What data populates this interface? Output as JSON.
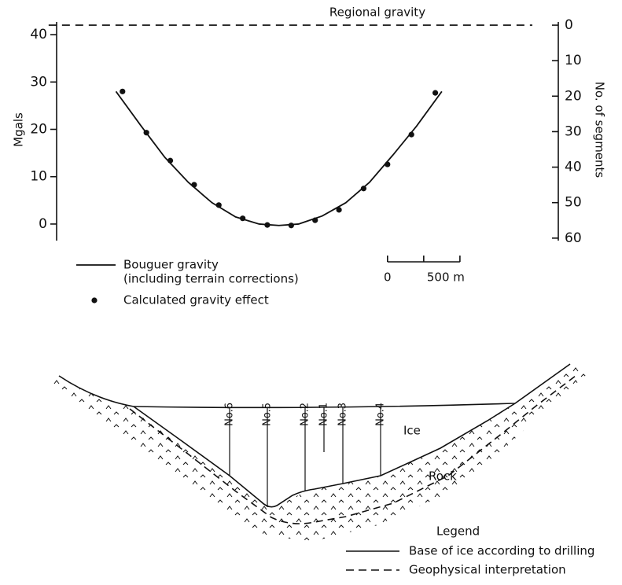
{
  "chart_data": {
    "type": "line",
    "y_label": "Mgals",
    "y2_label": "No. of segments",
    "xlim": [
      -2350,
      1125
    ],
    "ylim": [
      -3.5,
      43.5
    ],
    "yticks": [
      0,
      10,
      20,
      30,
      40
    ],
    "y2lim": [
      60.7,
      -2
    ],
    "y2ticks": [
      0,
      10,
      20,
      30,
      40,
      50,
      60
    ],
    "series": [
      {
        "name": "Regional gravity",
        "type": "line",
        "dash": true,
        "color": "#111",
        "x": [
          -2340,
          1000
        ],
        "values": [
          42,
          42
        ]
      },
      {
        "name": "Bouguer gravity",
        "note": "(including terrain corrections)",
        "type": "line",
        "color": "#111",
        "x": [
          -1875,
          -1701,
          -1538,
          -1375,
          -1212,
          -1049,
          -886,
          -750,
          -614,
          -451,
          -288,
          -125,
          38,
          201,
          375
        ],
        "values": [
          28,
          20.7,
          14.1,
          8.8,
          4.5,
          1.5,
          0,
          -0.3,
          0,
          1.7,
          4.5,
          8.8,
          14.6,
          20.7,
          28
        ]
      },
      {
        "name": "Calculated gravity effect",
        "type": "scatter",
        "color": "#111",
        "x": [
          -1830,
          -1665,
          -1500,
          -1335,
          -1165,
          -1000,
          -830,
          -665,
          -500,
          -335,
          -165,
          0,
          165,
          330
        ],
        "values": [
          28,
          19.3,
          13.4,
          8.3,
          4,
          1.2,
          -0.2,
          -0.3,
          0.8,
          3,
          7.5,
          12.6,
          18.9,
          27.7
        ]
      }
    ],
    "scale_bar": {
      "ticks": [
        0,
        {
          "value": 500,
          "label": "500 m"
        }
      ]
    }
  },
  "diagram": {
    "boreholes": [
      "No.6",
      "No.5",
      "No.2",
      "No.1",
      "No.3",
      "No.4"
    ],
    "labels": {
      "ice": "Ice",
      "rock": "Rock"
    },
    "legend": {
      "title": "Legend",
      "items": [
        "Base of ice according to drilling",
        "Geophysical interpretation"
      ]
    }
  }
}
